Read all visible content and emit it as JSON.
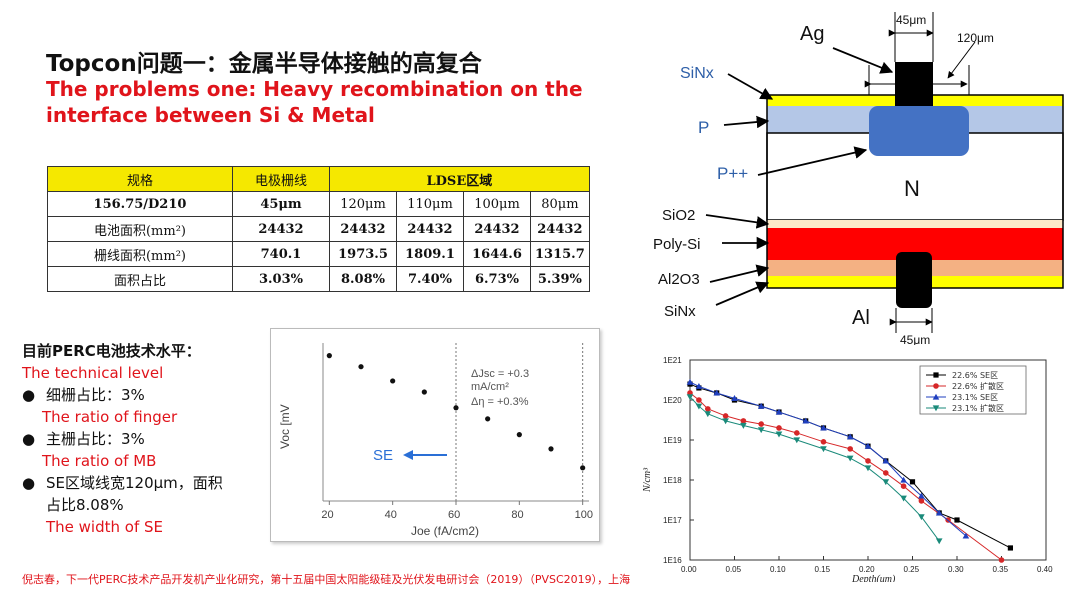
{
  "title": "Topcon问题一：金属半导体接触的高复合",
  "subtitle": "The problems one: Heavy recombination on the interface between Si & Metal",
  "table": {
    "header": [
      "规格",
      "电极栅线",
      "LDSE区域"
    ],
    "rows": [
      [
        "156.75/D210",
        "45μm",
        "120μm",
        "110μm",
        "100μm",
        "80μm"
      ],
      [
        "电池面积(mm²)",
        "24432",
        "24432",
        "24432",
        "24432",
        "24432"
      ],
      [
        "栅线面积(mm²)",
        "740.1",
        "1973.5",
        "1809.1",
        "1644.6",
        "1315.7"
      ],
      [
        "面积占比",
        "3.03%",
        "8.08%",
        "7.40%",
        "6.73%",
        "5.39%"
      ]
    ]
  },
  "perc": {
    "heading": "目前PERC电池技术水平：",
    "heading_en": "The technical level",
    "items": [
      {
        "bullet": "●",
        "cn": "细栅占比：3%",
        "en": "The ratio of finger"
      },
      {
        "bullet": "●",
        "cn": "主栅占比：3%",
        "en": "The ratio of MB"
      },
      {
        "bullet": "●",
        "cn": "SE区域线宽120μm，面积",
        "cn2": "占比8.08%",
        "en": "The width of SE"
      }
    ]
  },
  "reference": "倪志春，下一代PERC技术产品开发机产业化研究，第十五届中国太阳能级硅及光伏发电研讨会（2019）（PVSC2019），上海",
  "voc_chart": {
    "ylabel": "Voc [mV",
    "xlabel": "Joe (fA/cm2)",
    "annotation_lines": [
      "ΔJsc = +0.3",
      "mA/cm²",
      "Δη = +0.3%"
    ],
    "se_label": "SE",
    "chart_data": {
      "type": "scatter",
      "x": [
        20,
        30,
        40,
        50,
        60,
        70,
        80,
        90,
        100
      ],
      "y": [
        9.2,
        8.5,
        7.6,
        6.9,
        5.9,
        5.2,
        4.2,
        3.3,
        2.1
      ],
      "xticks": [
        "20",
        "40",
        "60",
        "80",
        "100"
      ],
      "xlim": [
        18,
        102
      ],
      "vlines": [
        60,
        100
      ]
    }
  },
  "diagram": {
    "labels": {
      "ag": "Ag",
      "sinx_top": "SiNx",
      "p": "P",
      "ppp": "P++",
      "n": "N",
      "sio2": "SiO2",
      "polysi": "Poly-Si",
      "al2o3": "Al2O3",
      "sinx_bot": "SiNx",
      "al": "Al",
      "dim_top1": "45μm",
      "dim_top2": "120μm",
      "dim_bot": "45μm"
    },
    "colors": {
      "yellow": "#ffff00",
      "p_layer": "#b4c7e7",
      "ppp": "#4472c4",
      "n": "#ffffff",
      "sio2": "#fde9c8",
      "polysi": "#ff0000",
      "al2o3": "#f4b183",
      "metal": "#000000"
    }
  },
  "depth_chart": {
    "ylabel": "N/cm³",
    "xlabel": "Depth(um)",
    "yticks": [
      "1E21",
      "1E20",
      "1E19",
      "1E18",
      "1E17",
      "1E16"
    ],
    "xticks": [
      "0.00",
      "0.05",
      "0.10",
      "0.15",
      "0.20",
      "0.25",
      "0.30",
      "0.35",
      "0.40"
    ],
    "chart_data": {
      "type": "line",
      "y_scale": "log",
      "xlim": [
        0,
        0.4
      ],
      "ylim": [
        1e+16,
        1e+21
      ],
      "series": [
        {
          "name": "22.6% SE区",
          "color": "#000000",
          "marker": "square",
          "x": [
            0.0,
            0.01,
            0.03,
            0.05,
            0.08,
            0.1,
            0.13,
            0.15,
            0.18,
            0.2,
            0.22,
            0.25,
            0.28,
            0.3,
            0.36
          ],
          "y": [
            2.5e+20,
            2e+20,
            1.5e+20,
            1e+20,
            7e+19,
            5e+19,
            3e+19,
            2e+19,
            1.2e+19,
            7e+18,
            3e+18,
            9e+17,
            1.5e+17,
            1e+17,
            2e+16
          ]
        },
        {
          "name": "22.6% 扩散区",
          "color": "#d62728",
          "marker": "circle",
          "x": [
            0.0,
            0.01,
            0.02,
            0.04,
            0.06,
            0.08,
            0.1,
            0.12,
            0.15,
            0.18,
            0.2,
            0.22,
            0.24,
            0.26,
            0.29,
            0.35
          ],
          "y": [
            1.5e+20,
            1e+20,
            6e+19,
            4e+19,
            3e+19,
            2.5e+19,
            2e+19,
            1.5e+19,
            9e+18,
            6e+18,
            3e+18,
            1.5e+18,
            7e+17,
            3e+17,
            1e+17,
            1e+16
          ]
        },
        {
          "name": "23.1% SE区",
          "color": "#1f3fbf",
          "marker": "triangle",
          "x": [
            0.0,
            0.01,
            0.03,
            0.05,
            0.08,
            0.1,
            0.13,
            0.15,
            0.18,
            0.2,
            0.22,
            0.24,
            0.26,
            0.28,
            0.31
          ],
          "y": [
            2.8e+20,
            2.2e+20,
            1.5e+20,
            1.1e+20,
            7e+19,
            5e+19,
            3e+19,
            2e+19,
            1.2e+19,
            7e+18,
            3e+18,
            1e+18,
            4e+17,
            1.5e+17,
            4e+16
          ]
        },
        {
          "name": "23.1% 扩散区",
          "color": "#1a8a7a",
          "marker": "tri-down",
          "x": [
            0.0,
            0.01,
            0.02,
            0.04,
            0.06,
            0.08,
            0.1,
            0.12,
            0.15,
            0.18,
            0.2,
            0.22,
            0.24,
            0.26,
            0.28
          ],
          "y": [
            1.2e+20,
            7e+19,
            4.5e+19,
            3e+19,
            2.3e+19,
            1.8e+19,
            1.4e+19,
            1e+19,
            6e+18,
            3.5e+18,
            2e+18,
            9e+17,
            3.5e+17,
            1.2e+17,
            3e+16
          ]
        }
      ]
    }
  }
}
